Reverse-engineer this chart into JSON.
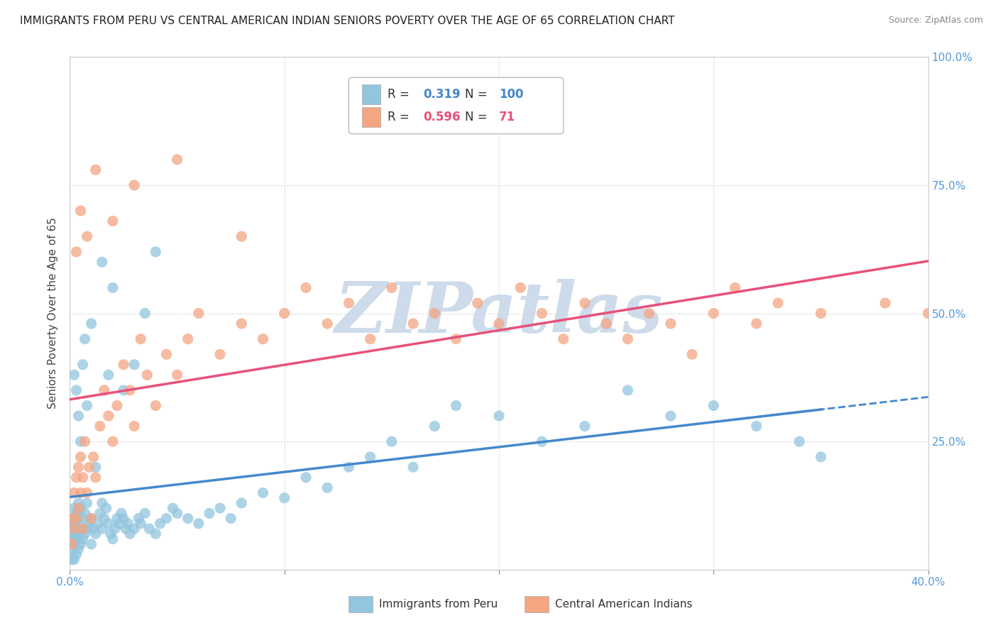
{
  "title": "IMMIGRANTS FROM PERU VS CENTRAL AMERICAN INDIAN SENIORS POVERTY OVER THE AGE OF 65 CORRELATION CHART",
  "source": "Source: ZipAtlas.com",
  "ylabel": "Seniors Poverty Over the Age of 65",
  "xlim": [
    0.0,
    0.4
  ],
  "ylim": [
    0.0,
    1.0
  ],
  "xticks": [
    0.0,
    0.1,
    0.2,
    0.3,
    0.4
  ],
  "xtick_labels": [
    "0.0%",
    "",
    "",
    "",
    "40.0%"
  ],
  "yticks": [
    0.0,
    0.25,
    0.5,
    0.75,
    1.0
  ],
  "ytick_labels_right": [
    "",
    "25.0%",
    "50.0%",
    "75.0%",
    "100.0%"
  ],
  "series1_label": "Immigrants from Peru",
  "series1_color": "#92c5de",
  "series1_R": "0.319",
  "series1_N": "100",
  "series2_label": "Central American Indians",
  "series2_color": "#f4a582",
  "series2_R": "0.596",
  "series2_N": "71",
  "line1_color": "#4488cc",
  "line2_color": "#e8507a",
  "background_color": "#ffffff",
  "grid_color": "#d0d0d0",
  "tick_color": "#5599dd",
  "watermark_color": "#c8d8e8",
  "series1_x": [
    0.001,
    0.001,
    0.001,
    0.001,
    0.001,
    0.002,
    0.002,
    0.002,
    0.002,
    0.002,
    0.003,
    0.003,
    0.003,
    0.003,
    0.004,
    0.004,
    0.004,
    0.004,
    0.005,
    0.005,
    0.005,
    0.006,
    0.006,
    0.007,
    0.007,
    0.008,
    0.008,
    0.009,
    0.01,
    0.01,
    0.011,
    0.012,
    0.013,
    0.014,
    0.015,
    0.015,
    0.016,
    0.017,
    0.018,
    0.019,
    0.02,
    0.021,
    0.022,
    0.023,
    0.024,
    0.025,
    0.026,
    0.027,
    0.028,
    0.03,
    0.032,
    0.033,
    0.035,
    0.037,
    0.04,
    0.042,
    0.045,
    0.048,
    0.05,
    0.055,
    0.06,
    0.065,
    0.07,
    0.075,
    0.08,
    0.09,
    0.1,
    0.11,
    0.12,
    0.13,
    0.14,
    0.15,
    0.16,
    0.17,
    0.18,
    0.2,
    0.22,
    0.24,
    0.26,
    0.28,
    0.3,
    0.32,
    0.34,
    0.35,
    0.002,
    0.003,
    0.004,
    0.005,
    0.006,
    0.007,
    0.008,
    0.01,
    0.012,
    0.015,
    0.018,
    0.02,
    0.025,
    0.03,
    0.035,
    0.04
  ],
  "series1_y": [
    0.02,
    0.04,
    0.06,
    0.08,
    0.1,
    0.02,
    0.05,
    0.07,
    0.09,
    0.12,
    0.03,
    0.06,
    0.08,
    0.11,
    0.04,
    0.07,
    0.1,
    0.13,
    0.05,
    0.08,
    0.12,
    0.06,
    0.1,
    0.07,
    0.11,
    0.08,
    0.13,
    0.09,
    0.05,
    0.1,
    0.08,
    0.07,
    0.09,
    0.11,
    0.08,
    0.13,
    0.1,
    0.12,
    0.09,
    0.07,
    0.06,
    0.08,
    0.1,
    0.09,
    0.11,
    0.1,
    0.08,
    0.09,
    0.07,
    0.08,
    0.1,
    0.09,
    0.11,
    0.08,
    0.07,
    0.09,
    0.1,
    0.12,
    0.11,
    0.1,
    0.09,
    0.11,
    0.12,
    0.1,
    0.13,
    0.15,
    0.14,
    0.18,
    0.16,
    0.2,
    0.22,
    0.25,
    0.2,
    0.28,
    0.32,
    0.3,
    0.25,
    0.28,
    0.35,
    0.3,
    0.32,
    0.28,
    0.25,
    0.22,
    0.38,
    0.35,
    0.3,
    0.25,
    0.4,
    0.45,
    0.32,
    0.48,
    0.2,
    0.6,
    0.38,
    0.55,
    0.35,
    0.4,
    0.5,
    0.62
  ],
  "series2_x": [
    0.001,
    0.001,
    0.002,
    0.002,
    0.003,
    0.003,
    0.004,
    0.004,
    0.005,
    0.005,
    0.006,
    0.006,
    0.007,
    0.008,
    0.009,
    0.01,
    0.011,
    0.012,
    0.014,
    0.016,
    0.018,
    0.02,
    0.022,
    0.025,
    0.028,
    0.03,
    0.033,
    0.036,
    0.04,
    0.045,
    0.05,
    0.055,
    0.06,
    0.07,
    0.08,
    0.09,
    0.1,
    0.11,
    0.12,
    0.13,
    0.14,
    0.15,
    0.16,
    0.17,
    0.18,
    0.19,
    0.2,
    0.21,
    0.22,
    0.23,
    0.24,
    0.25,
    0.26,
    0.27,
    0.28,
    0.29,
    0.3,
    0.31,
    0.32,
    0.33,
    0.35,
    0.38,
    0.4,
    0.003,
    0.005,
    0.008,
    0.012,
    0.02,
    0.03,
    0.05,
    0.08
  ],
  "series2_y": [
    0.05,
    0.1,
    0.08,
    0.15,
    0.1,
    0.18,
    0.12,
    0.2,
    0.15,
    0.22,
    0.08,
    0.18,
    0.25,
    0.15,
    0.2,
    0.1,
    0.22,
    0.18,
    0.28,
    0.35,
    0.3,
    0.25,
    0.32,
    0.4,
    0.35,
    0.28,
    0.45,
    0.38,
    0.32,
    0.42,
    0.38,
    0.45,
    0.5,
    0.42,
    0.48,
    0.45,
    0.5,
    0.55,
    0.48,
    0.52,
    0.45,
    0.55,
    0.48,
    0.5,
    0.45,
    0.52,
    0.48,
    0.55,
    0.5,
    0.45,
    0.52,
    0.48,
    0.45,
    0.5,
    0.48,
    0.42,
    0.5,
    0.55,
    0.48,
    0.52,
    0.5,
    0.52,
    0.5,
    0.62,
    0.7,
    0.65,
    0.78,
    0.68,
    0.75,
    0.8,
    0.65
  ]
}
